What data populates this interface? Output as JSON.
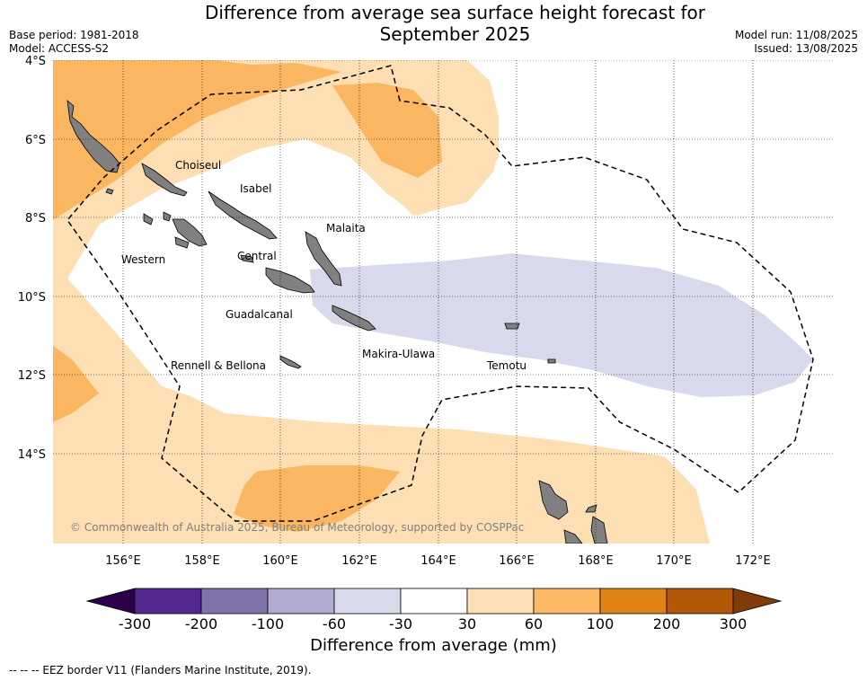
{
  "title_line1": "Difference from average sea surface height forecast for",
  "title_line2": "September 2025",
  "header_left": [
    "Base period: 1981-2018",
    "Model: ACCESS-S2"
  ],
  "header_right": [
    "Model run: 11/08/2025",
    "Issued: 13/08/2025"
  ],
  "lat_labels": [
    "4°S",
    "6°S",
    "8°S",
    "10°S",
    "12°S",
    "14°S"
  ],
  "lon_labels": [
    "156°E",
    "158°E",
    "160°E",
    "162°E",
    "164°E",
    "166°E",
    "168°E",
    "170°E",
    "172°E"
  ],
  "place_labels": {
    "choiseul": "Choiseul",
    "isabel": "Isabel",
    "malaita": "Malaita",
    "western": "Western",
    "central": "Central",
    "guadalcanal": "Guadalcanal",
    "rennell": "Rennell & Bellona",
    "makira": "Makira-Ulawa",
    "temotu": "Temotu"
  },
  "copyright": "© Commonwealth of Australia 2025, Bureau of Meteorology, supported by COSPPac",
  "colorbar": {
    "title": "Difference from average (mm)",
    "ticks": [
      "-300",
      "-200",
      "-100",
      "-60",
      "-30",
      "30",
      "60",
      "100",
      "200",
      "300"
    ],
    "colors": [
      "#54278f",
      "#8073ac",
      "#b2abd2",
      "#d8daeb",
      "#ffffff",
      "#fee0b6",
      "#fdb863",
      "#e08214",
      "#b35806"
    ],
    "under_color": "#2d004b",
    "over_color": "#7f3b08"
  },
  "footer": "-- -- -- EEZ border V11 (Flanders Marine Institute, 2019).",
  "colors": {
    "light_orange": "#fddfb3",
    "mid_orange": "#fbb661",
    "light_purple": "#d8d9eb",
    "land": "#808080"
  }
}
